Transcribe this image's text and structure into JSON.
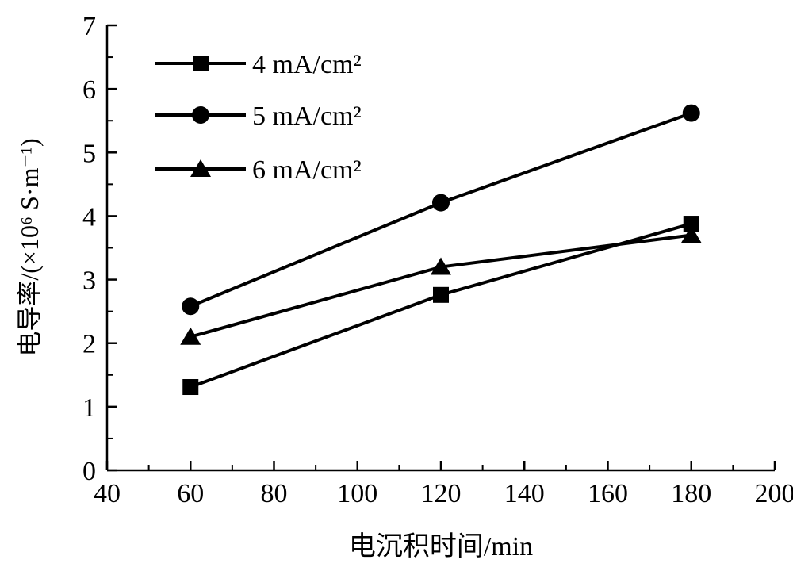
{
  "chart_data": {
    "type": "line",
    "title": "",
    "xlabel": "电沉积时间/min",
    "ylabel": "电导率/(×10⁶ S·m⁻¹)",
    "xlim": [
      40,
      200
    ],
    "ylim": [
      0,
      7
    ],
    "xticks": [
      40,
      60,
      80,
      100,
      120,
      140,
      160,
      180,
      200
    ],
    "yticks": [
      0,
      1,
      2,
      3,
      4,
      5,
      6,
      7
    ],
    "grid": false,
    "legend_position": "top-left",
    "x": [
      60,
      120,
      180
    ],
    "series": [
      {
        "name": "4 mA/cm²",
        "marker": "square",
        "values": [
          1.31,
          2.76,
          3.88
        ]
      },
      {
        "name": "5 mA/cm²",
        "marker": "circle",
        "values": [
          2.58,
          4.21,
          5.62
        ]
      },
      {
        "name": "6 mA/cm²",
        "marker": "triangle",
        "values": [
          2.1,
          3.2,
          3.7
        ]
      }
    ]
  }
}
